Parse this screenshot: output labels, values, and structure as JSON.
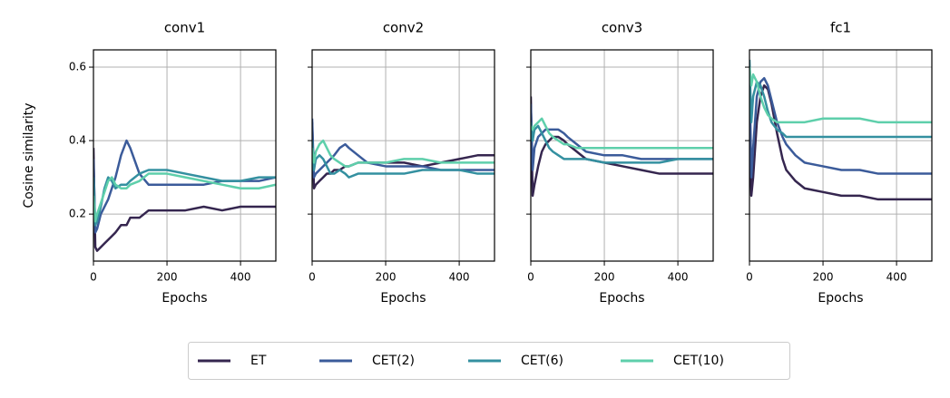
{
  "chart_data": [
    {
      "type": "line",
      "title": "conv1",
      "xlabel": "Epochs",
      "ylabel": "Cosine similarity",
      "x": [
        0,
        5,
        10,
        20,
        30,
        40,
        50,
        60,
        75,
        90,
        100,
        125,
        150,
        200,
        250,
        300,
        350,
        400,
        450,
        496
      ],
      "xlim": [
        0,
        496
      ],
      "ylim": [
        0.072,
        0.647
      ],
      "xticks": [
        0,
        200,
        400
      ],
      "yticks": [
        0.2,
        0.4,
        0.6
      ],
      "grid": true,
      "series": [
        {
          "name": "ET",
          "color": "#35264f",
          "values": [
            0.38,
            0.11,
            0.1,
            0.11,
            0.12,
            0.13,
            0.14,
            0.15,
            0.17,
            0.17,
            0.19,
            0.19,
            0.21,
            0.21,
            0.21,
            0.22,
            0.21,
            0.22,
            0.22,
            0.22
          ]
        },
        {
          "name": "CET(2)",
          "color": "#3b5b9a",
          "values": [
            0.35,
            0.15,
            0.16,
            0.2,
            0.22,
            0.24,
            0.27,
            0.3,
            0.36,
            0.4,
            0.38,
            0.31,
            0.28,
            0.28,
            0.28,
            0.28,
            0.29,
            0.29,
            0.29,
            0.3
          ]
        },
        {
          "name": "CET(6)",
          "color": "#3490a0",
          "values": [
            0.3,
            0.17,
            0.18,
            0.22,
            0.27,
            0.3,
            0.29,
            0.27,
            0.28,
            0.28,
            0.29,
            0.31,
            0.32,
            0.32,
            0.31,
            0.3,
            0.29,
            0.29,
            0.3,
            0.3
          ]
        },
        {
          "name": "CET(10)",
          "color": "#5ecfab",
          "values": [
            0.25,
            0.18,
            0.2,
            0.23,
            0.26,
            0.29,
            0.3,
            0.28,
            0.27,
            0.27,
            0.28,
            0.29,
            0.31,
            0.31,
            0.3,
            0.29,
            0.28,
            0.27,
            0.27,
            0.28
          ]
        }
      ]
    },
    {
      "type": "line",
      "title": "conv2",
      "xlabel": "Epochs",
      "x": [
        0,
        5,
        10,
        20,
        30,
        40,
        50,
        60,
        75,
        90,
        100,
        125,
        150,
        200,
        250,
        300,
        350,
        400,
        450,
        496
      ],
      "xlim": [
        0,
        496
      ],
      "ylim": [
        0.072,
        0.647
      ],
      "xticks": [
        0,
        200,
        400
      ],
      "yticks": [
        0.2,
        0.4,
        0.6
      ],
      "grid": true,
      "series": [
        {
          "name": "ET",
          "color": "#35264f",
          "values": [
            0.45,
            0.27,
            0.28,
            0.29,
            0.3,
            0.31,
            0.31,
            0.32,
            0.32,
            0.33,
            0.33,
            0.34,
            0.34,
            0.34,
            0.34,
            0.33,
            0.34,
            0.35,
            0.36,
            0.36
          ]
        },
        {
          "name": "CET(2)",
          "color": "#3b5b9a",
          "values": [
            0.46,
            0.3,
            0.31,
            0.32,
            0.33,
            0.34,
            0.35,
            0.36,
            0.38,
            0.39,
            0.38,
            0.36,
            0.34,
            0.33,
            0.33,
            0.33,
            0.32,
            0.32,
            0.32,
            0.32
          ]
        },
        {
          "name": "CET(6)",
          "color": "#3490a0",
          "values": [
            0.4,
            0.32,
            0.35,
            0.36,
            0.35,
            0.33,
            0.31,
            0.31,
            0.32,
            0.31,
            0.3,
            0.31,
            0.31,
            0.31,
            0.31,
            0.32,
            0.32,
            0.32,
            0.31,
            0.31
          ]
        },
        {
          "name": "CET(10)",
          "color": "#5ecfab",
          "values": [
            0.38,
            0.34,
            0.37,
            0.39,
            0.4,
            0.38,
            0.36,
            0.35,
            0.34,
            0.33,
            0.33,
            0.34,
            0.34,
            0.34,
            0.35,
            0.35,
            0.34,
            0.34,
            0.34,
            0.34
          ]
        }
      ]
    },
    {
      "type": "line",
      "title": "conv3",
      "xlabel": "Epochs",
      "x": [
        0,
        5,
        10,
        20,
        30,
        40,
        50,
        60,
        75,
        90,
        100,
        125,
        150,
        200,
        250,
        300,
        350,
        400,
        450,
        496
      ],
      "xlim": [
        0,
        496
      ],
      "ylim": [
        0.072,
        0.647
      ],
      "xticks": [
        0,
        200,
        400
      ],
      "yticks": [
        0.2,
        0.4,
        0.6
      ],
      "grid": true,
      "series": [
        {
          "name": "ET",
          "color": "#35264f",
          "values": [
            0.52,
            0.25,
            0.28,
            0.33,
            0.37,
            0.39,
            0.4,
            0.41,
            0.41,
            0.4,
            0.39,
            0.37,
            0.35,
            0.34,
            0.33,
            0.32,
            0.31,
            0.31,
            0.31,
            0.31
          ]
        },
        {
          "name": "CET(2)",
          "color": "#3b5b9a",
          "values": [
            0.5,
            0.32,
            0.38,
            0.41,
            0.42,
            0.43,
            0.43,
            0.43,
            0.43,
            0.42,
            0.41,
            0.39,
            0.37,
            0.36,
            0.36,
            0.35,
            0.35,
            0.35,
            0.35,
            0.35
          ]
        },
        {
          "name": "CET(6)",
          "color": "#3490a0",
          "values": [
            0.45,
            0.4,
            0.43,
            0.44,
            0.42,
            0.4,
            0.38,
            0.37,
            0.36,
            0.35,
            0.35,
            0.35,
            0.35,
            0.34,
            0.34,
            0.34,
            0.34,
            0.35,
            0.35,
            0.35
          ]
        },
        {
          "name": "CET(10)",
          "color": "#5ecfab",
          "values": [
            0.44,
            0.43,
            0.44,
            0.45,
            0.46,
            0.44,
            0.42,
            0.41,
            0.4,
            0.39,
            0.39,
            0.38,
            0.38,
            0.38,
            0.38,
            0.38,
            0.38,
            0.38,
            0.38,
            0.38
          ]
        }
      ]
    },
    {
      "type": "line",
      "title": "fc1",
      "xlabel": "Epochs",
      "x": [
        0,
        5,
        10,
        20,
        30,
        40,
        50,
        60,
        75,
        90,
        100,
        125,
        150,
        200,
        250,
        300,
        350,
        400,
        450,
        496
      ],
      "xlim": [
        0,
        496
      ],
      "ylim": [
        0.072,
        0.647
      ],
      "xticks": [
        0,
        200,
        400
      ],
      "yticks": [
        0.2,
        0.4,
        0.6
      ],
      "grid": true,
      "series": [
        {
          "name": "ET",
          "color": "#35264f",
          "values": [
            0.45,
            0.25,
            0.3,
            0.45,
            0.52,
            0.55,
            0.54,
            0.5,
            0.42,
            0.35,
            0.32,
            0.29,
            0.27,
            0.26,
            0.25,
            0.25,
            0.24,
            0.24,
            0.24,
            0.24
          ]
        },
        {
          "name": "CET(2)",
          "color": "#3b5b9a",
          "values": [
            0.6,
            0.3,
            0.38,
            0.52,
            0.56,
            0.57,
            0.55,
            0.51,
            0.45,
            0.41,
            0.39,
            0.36,
            0.34,
            0.33,
            0.32,
            0.32,
            0.31,
            0.31,
            0.31,
            0.31
          ]
        },
        {
          "name": "CET(6)",
          "color": "#3490a0",
          "values": [
            0.62,
            0.45,
            0.52,
            0.56,
            0.55,
            0.52,
            0.48,
            0.45,
            0.43,
            0.42,
            0.41,
            0.41,
            0.41,
            0.41,
            0.41,
            0.41,
            0.41,
            0.41,
            0.41,
            0.41
          ]
        },
        {
          "name": "CET(10)",
          "color": "#5ecfab",
          "values": [
            0.6,
            0.55,
            0.58,
            0.56,
            0.52,
            0.49,
            0.47,
            0.46,
            0.45,
            0.45,
            0.45,
            0.45,
            0.45,
            0.46,
            0.46,
            0.46,
            0.45,
            0.45,
            0.45,
            0.45
          ]
        }
      ]
    }
  ]
}
